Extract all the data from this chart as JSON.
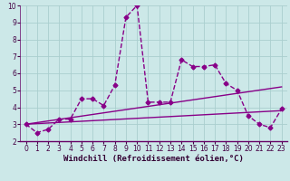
{
  "xlabel": "Windchill (Refroidissement éolien,°C)",
  "background_color": "#cce8e8",
  "grid_color": "#aacece",
  "line_color": "#880088",
  "xlim": [
    -0.5,
    23.5
  ],
  "ylim": [
    2,
    10
  ],
  "xticks": [
    0,
    1,
    2,
    3,
    4,
    5,
    6,
    7,
    8,
    9,
    10,
    11,
    12,
    13,
    14,
    15,
    16,
    17,
    18,
    19,
    20,
    21,
    22,
    23
  ],
  "yticks": [
    2,
    3,
    4,
    5,
    6,
    7,
    8,
    9,
    10
  ],
  "series1_x": [
    0,
    1,
    2,
    3,
    4,
    5,
    6,
    7,
    8,
    9,
    10,
    11,
    12,
    13,
    14,
    15,
    16,
    17,
    18,
    19,
    20,
    21,
    22,
    23
  ],
  "series1_y": [
    3.0,
    2.5,
    2.7,
    3.3,
    3.3,
    4.5,
    4.5,
    4.1,
    5.3,
    9.3,
    10.0,
    4.3,
    4.3,
    4.3,
    6.8,
    6.4,
    6.4,
    6.5,
    5.4,
    5.0,
    3.5,
    3.0,
    2.8,
    3.9
  ],
  "series2_x": [
    0,
    23
  ],
  "series2_y": [
    3.0,
    5.2
  ],
  "series3_x": [
    0,
    23
  ],
  "series3_y": [
    3.0,
    3.8
  ],
  "marker": "D",
  "markersize": 2.5,
  "linewidth": 1.0,
  "tick_fontsize": 5.5,
  "xlabel_fontsize": 6.5
}
